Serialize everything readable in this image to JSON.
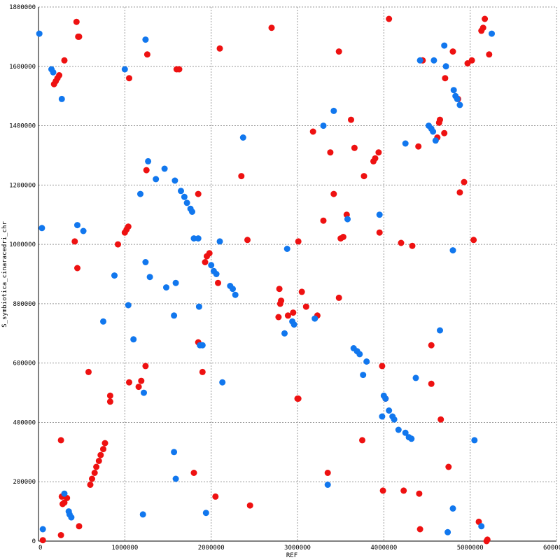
{
  "chart_data": {
    "type": "scatter",
    "title": "",
    "xlabel": "REF",
    "ylabel": "S_symbiotica_cinaracedri_chr",
    "xlim": [
      0,
      6000000
    ],
    "ylim": [
      0,
      1800000
    ],
    "x_ticks": [
      0,
      1000000,
      2000000,
      3000000,
      4000000,
      5000000,
      6000000
    ],
    "y_ticks": [
      0,
      200000,
      400000,
      600000,
      800000,
      1000000,
      1200000,
      1400000,
      1600000,
      1800000
    ],
    "x_tick_labels": [
      "0",
      "1000000",
      "2000000",
      "3000000",
      "4000000",
      "5000000",
      "6000000"
    ],
    "y_tick_labels": [
      "0",
      "200000",
      "400000",
      "600000",
      "800000",
      "1000000",
      "1200000",
      "1400000",
      "1600000",
      "1800000"
    ],
    "grid": true,
    "colors": {
      "red": "#ee1111",
      "blue": "#1177ee"
    },
    "series": [
      {
        "color": "red",
        "points": [
          [
            50000,
            3000
          ],
          [
            260000,
            20000
          ],
          [
            270000,
            150000
          ],
          [
            280000,
            125000
          ],
          [
            300000,
            130000
          ],
          [
            330000,
            145000
          ],
          [
            260000,
            340000
          ],
          [
            470000,
            50000
          ],
          [
            580000,
            570000
          ],
          [
            600000,
            190000
          ],
          [
            620000,
            210000
          ],
          [
            650000,
            230000
          ],
          [
            670000,
            250000
          ],
          [
            700000,
            270000
          ],
          [
            720000,
            290000
          ],
          [
            750000,
            310000
          ],
          [
            770000,
            330000
          ],
          [
            830000,
            470000
          ],
          [
            830000,
            490000
          ],
          [
            440000,
            1750000
          ],
          [
            460000,
            1700000
          ],
          [
            470000,
            1700000
          ],
          [
            300000,
            1620000
          ],
          [
            180000,
            1540000
          ],
          [
            200000,
            1550000
          ],
          [
            220000,
            1560000
          ],
          [
            240000,
            1570000
          ],
          [
            420000,
            1010000
          ],
          [
            450000,
            920000
          ],
          [
            920000,
            1000000
          ],
          [
            1000000,
            1040000
          ],
          [
            1020000,
            1050000
          ],
          [
            1040000,
            1060000
          ],
          [
            1050000,
            535000
          ],
          [
            1160000,
            520000
          ],
          [
            1190000,
            540000
          ],
          [
            1240000,
            590000
          ],
          [
            1250000,
            1250000
          ],
          [
            1260000,
            1640000
          ],
          [
            1050000,
            1560000
          ],
          [
            1600000,
            1590000
          ],
          [
            1630000,
            1590000
          ],
          [
            1800000,
            230000
          ],
          [
            1850000,
            1170000
          ],
          [
            1850000,
            670000
          ],
          [
            1900000,
            570000
          ],
          [
            1930000,
            940000
          ],
          [
            1950000,
            960000
          ],
          [
            1980000,
            970000
          ],
          [
            2050000,
            150000
          ],
          [
            2080000,
            870000
          ],
          [
            2100000,
            1660000
          ],
          [
            2350000,
            1230000
          ],
          [
            2420000,
            1015000
          ],
          [
            2450000,
            120000
          ],
          [
            2700000,
            1730000
          ],
          [
            2780000,
            755000
          ],
          [
            2790000,
            850000
          ],
          [
            2800000,
            800000
          ],
          [
            2810000,
            810000
          ],
          [
            2890000,
            760000
          ],
          [
            2950000,
            770000
          ],
          [
            3000000,
            480000
          ],
          [
            3010000,
            480000
          ],
          [
            3010000,
            1010000
          ],
          [
            3050000,
            840000
          ],
          [
            3100000,
            790000
          ],
          [
            3180000,
            1380000
          ],
          [
            3230000,
            760000
          ],
          [
            3300000,
            1080000
          ],
          [
            3350000,
            230000
          ],
          [
            3380000,
            1310000
          ],
          [
            3420000,
            1170000
          ],
          [
            3480000,
            1650000
          ],
          [
            3480000,
            820000
          ],
          [
            3500000,
            1020000
          ],
          [
            3530000,
            1025000
          ],
          [
            3570000,
            1100000
          ],
          [
            3620000,
            1420000
          ],
          [
            3660000,
            1325000
          ],
          [
            3750000,
            340000
          ],
          [
            3770000,
            1230000
          ],
          [
            3880000,
            1280000
          ],
          [
            3900000,
            1290000
          ],
          [
            3940000,
            1310000
          ],
          [
            3950000,
            1040000
          ],
          [
            3980000,
            590000
          ],
          [
            3990000,
            170000
          ],
          [
            4020000,
            480000
          ],
          [
            4060000,
            1760000
          ],
          [
            4200000,
            1005000
          ],
          [
            4230000,
            170000
          ],
          [
            4330000,
            995000
          ],
          [
            4400000,
            1330000
          ],
          [
            4410000,
            160000
          ],
          [
            4420000,
            40000
          ],
          [
            4450000,
            1620000
          ],
          [
            4550000,
            660000
          ],
          [
            4550000,
            530000
          ],
          [
            4620000,
            1360000
          ],
          [
            4640000,
            1410000
          ],
          [
            4650000,
            1420000
          ],
          [
            4660000,
            410000
          ],
          [
            4700000,
            1375000
          ],
          [
            4710000,
            1560000
          ],
          [
            4750000,
            250000
          ],
          [
            4800000,
            1650000
          ],
          [
            4860000,
            1490000
          ],
          [
            4880000,
            1175000
          ],
          [
            4930000,
            1210000
          ],
          [
            4970000,
            1610000
          ],
          [
            5020000,
            1620000
          ],
          [
            5040000,
            1015000
          ],
          [
            5100000,
            65000
          ],
          [
            5130000,
            1720000
          ],
          [
            5150000,
            1730000
          ],
          [
            5170000,
            1760000
          ],
          [
            5190000,
            0
          ],
          [
            5200000,
            5000
          ],
          [
            5220000,
            1640000
          ]
        ]
      },
      {
        "color": "blue",
        "points": [
          [
            10000,
            1710000
          ],
          [
            40000,
            1055000
          ],
          [
            50000,
            40000
          ],
          [
            150000,
            1590000
          ],
          [
            170000,
            1580000
          ],
          [
            270000,
            1490000
          ],
          [
            300000,
            160000
          ],
          [
            350000,
            100000
          ],
          [
            360000,
            90000
          ],
          [
            380000,
            80000
          ],
          [
            450000,
            1065000
          ],
          [
            520000,
            1045000
          ],
          [
            750000,
            740000
          ],
          [
            880000,
            895000
          ],
          [
            1000000,
            1590000
          ],
          [
            1040000,
            795000
          ],
          [
            1100000,
            680000
          ],
          [
            1180000,
            1170000
          ],
          [
            1210000,
            90000
          ],
          [
            1220000,
            500000
          ],
          [
            1240000,
            940000
          ],
          [
            1240000,
            1690000
          ],
          [
            1270000,
            1280000
          ],
          [
            1290000,
            890000
          ],
          [
            1360000,
            1220000
          ],
          [
            1460000,
            1255000
          ],
          [
            1480000,
            855000
          ],
          [
            1570000,
            760000
          ],
          [
            1570000,
            300000
          ],
          [
            1580000,
            1215000
          ],
          [
            1590000,
            870000
          ],
          [
            1590000,
            210000
          ],
          [
            1650000,
            1180000
          ],
          [
            1690000,
            1160000
          ],
          [
            1720000,
            1140000
          ],
          [
            1760000,
            1120000
          ],
          [
            1780000,
            1110000
          ],
          [
            1800000,
            1020000
          ],
          [
            1850000,
            1020000
          ],
          [
            1860000,
            790000
          ],
          [
            1870000,
            660000
          ],
          [
            1900000,
            660000
          ],
          [
            1940000,
            95000
          ],
          [
            2000000,
            930000
          ],
          [
            2030000,
            910000
          ],
          [
            2060000,
            900000
          ],
          [
            2100000,
            1010000
          ],
          [
            2130000,
            535000
          ],
          [
            2220000,
            860000
          ],
          [
            2250000,
            850000
          ],
          [
            2280000,
            830000
          ],
          [
            2370000,
            1360000
          ],
          [
            2850000,
            700000
          ],
          [
            2880000,
            985000
          ],
          [
            2940000,
            740000
          ],
          [
            2960000,
            730000
          ],
          [
            3200000,
            750000
          ],
          [
            3300000,
            1400000
          ],
          [
            3350000,
            190000
          ],
          [
            3420000,
            1450000
          ],
          [
            3580000,
            1085000
          ],
          [
            3650000,
            650000
          ],
          [
            3690000,
            640000
          ],
          [
            3720000,
            630000
          ],
          [
            3760000,
            560000
          ],
          [
            3800000,
            605000
          ],
          [
            3950000,
            1100000
          ],
          [
            3980000,
            420000
          ],
          [
            4000000,
            490000
          ],
          [
            4020000,
            480000
          ],
          [
            4060000,
            440000
          ],
          [
            4100000,
            420000
          ],
          [
            4120000,
            410000
          ],
          [
            4170000,
            375000
          ],
          [
            4250000,
            1340000
          ],
          [
            4250000,
            365000
          ],
          [
            4290000,
            350000
          ],
          [
            4320000,
            345000
          ],
          [
            4370000,
            550000
          ],
          [
            4420000,
            1620000
          ],
          [
            4520000,
            1400000
          ],
          [
            4550000,
            1390000
          ],
          [
            4570000,
            1380000
          ],
          [
            4580000,
            1620000
          ],
          [
            4600000,
            1350000
          ],
          [
            4650000,
            710000
          ],
          [
            4700000,
            1670000
          ],
          [
            4720000,
            1600000
          ],
          [
            4740000,
            30000
          ],
          [
            4800000,
            980000
          ],
          [
            4810000,
            1520000
          ],
          [
            4830000,
            1500000
          ],
          [
            4850000,
            1490000
          ],
          [
            4880000,
            1470000
          ],
          [
            4800000,
            110000
          ],
          [
            5050000,
            340000
          ],
          [
            5130000,
            50000
          ],
          [
            5250000,
            1710000
          ]
        ]
      }
    ]
  }
}
